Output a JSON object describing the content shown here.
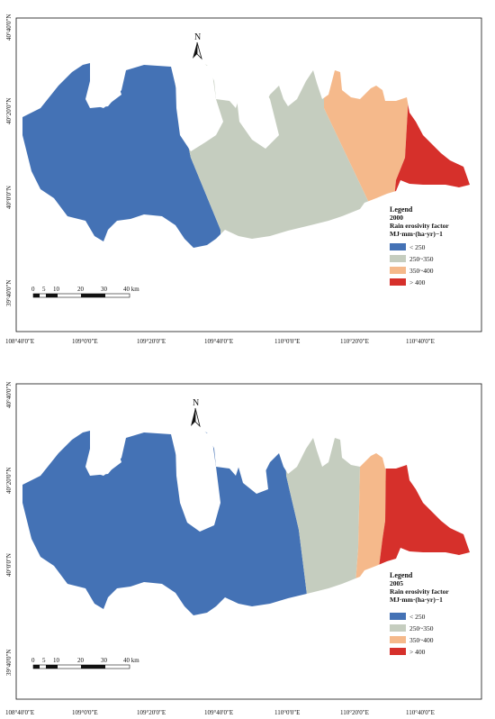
{
  "colors": {
    "class1": "#4472b5",
    "class2": "#c5cdbf",
    "class3": "#f5b98b",
    "class4": "#d6302b",
    "frame": "#111111"
  },
  "north_label": "N",
  "scale_bar": {
    "ticks": [
      "0",
      "5",
      "10",
      "20",
      "30",
      "40 km"
    ]
  },
  "longitude_labels": [
    "108°40'0\"E",
    "109°0'0\"E",
    "109°20'0\"E",
    "109°40'0\"E",
    "110°0'0\"E",
    "110°20'0\"E",
    "110°40'0\"E"
  ],
  "latitude_labels": [
    "40°40'0\"N",
    "40°20'0\"N",
    "40°0'0\"N",
    "39°40'0\"N"
  ],
  "legend": {
    "title": "Legend",
    "factor": "Rain erosivity factor",
    "unit": "MJ·mm·(ha·yr)−1",
    "classes": [
      "< 250",
      "250~350",
      "350~400",
      "> 400"
    ]
  },
  "panels": [
    {
      "year": "2000"
    },
    {
      "year": "2005"
    }
  ]
}
